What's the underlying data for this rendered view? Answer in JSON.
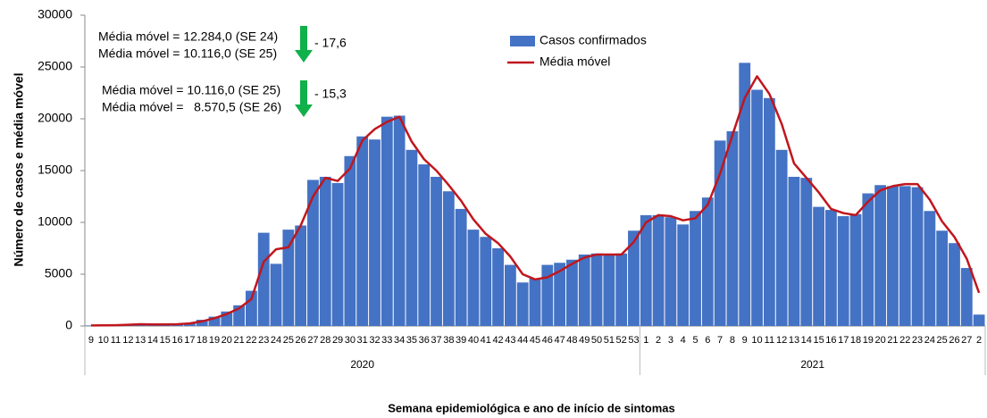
{
  "chart_data": {
    "type": "bar",
    "y_label": "Número de casos e média móvel",
    "x_label": "Semana epidemiológica  e ano de início de sintomas",
    "groups": [
      "2020",
      "2021"
    ],
    "categories": [
      "9",
      "10",
      "11",
      "12",
      "13",
      "14",
      "15",
      "16",
      "17",
      "18",
      "19",
      "20",
      "21",
      "22",
      "23",
      "24",
      "25",
      "26",
      "27",
      "28",
      "29",
      "30",
      "31",
      "32",
      "33",
      "34",
      "35",
      "36",
      "37",
      "38",
      "39",
      "40",
      "41",
      "42",
      "43",
      "44",
      "45",
      "46",
      "47",
      "48",
      "49",
      "50",
      "51",
      "52",
      "53",
      "1",
      "2",
      "3",
      "4",
      "5",
      "6",
      "7",
      "8",
      "9",
      "10",
      "11",
      "12",
      "13",
      "14",
      "15",
      "16",
      "17",
      "18",
      "19",
      "20",
      "21",
      "22",
      "23",
      "24",
      "25",
      "26",
      "27",
      "2"
    ],
    "series": [
      {
        "name": "Casos confirmados",
        "type": "bar",
        "color": "#4472c4",
        "values": [
          50,
          60,
          100,
          150,
          200,
          100,
          150,
          200,
          300,
          600,
          900,
          1400,
          2000,
          3400,
          9000,
          6000,
          9300,
          9700,
          14100,
          14400,
          13800,
          16400,
          18300,
          18000,
          20200,
          20300,
          17000,
          15600,
          14400,
          13000,
          11300,
          9300,
          8600,
          7500,
          5900,
          4200,
          4600,
          5900,
          6100,
          6400,
          6900,
          7000,
          6900,
          7000,
          9200,
          10700,
          10700,
          10500,
          9800,
          11100,
          12400,
          17900,
          18800,
          25400,
          22800,
          22000,
          17000,
          14400,
          14300,
          11500,
          11200,
          10600,
          10800,
          12800,
          13600,
          13500,
          13500,
          13400,
          11100,
          9200,
          8000,
          5600,
          1100
        ]
      },
      {
        "name": "Média móvel",
        "type": "line",
        "color": "#c0161d",
        "values": [
          50,
          60,
          80,
          120,
          170,
          150,
          150,
          170,
          250,
          450,
          750,
          1150,
          1700,
          2600,
          6200,
          7400,
          7600,
          9700,
          12500,
          14300,
          14000,
          15200,
          17900,
          19000,
          19700,
          20200,
          17800,
          16100,
          15000,
          13600,
          12100,
          10300,
          8900,
          8000,
          6700,
          5000,
          4500,
          4700,
          5300,
          6000,
          6600,
          6900,
          6900,
          6900,
          8100,
          10000,
          10700,
          10600,
          10200,
          10400,
          11700,
          14700,
          18400,
          22000,
          24100,
          22400,
          19500,
          15700,
          14300,
          12900,
          11300,
          10900,
          10700,
          12000,
          13100,
          13500,
          13700,
          13700,
          12200,
          10100,
          8600,
          6500,
          3200
        ]
      }
    ],
    "ylim": [
      0,
      30000
    ],
    "yticks": [
      0,
      5000,
      10000,
      15000,
      20000,
      25000,
      30000
    ],
    "grid": false,
    "annotations": [
      {
        "lines": [
          "Média móvel = 12.284,0 (SE 24)",
          "Média móvel = 10.116,0 (SE 25)"
        ],
        "change": "- 17,6"
      },
      {
        "lines": [
          "Média móvel = 10.116,0 (SE 25)",
          "Média móvel =   8.570,5 (SE 26)"
        ],
        "change": "- 15,3"
      }
    ]
  }
}
